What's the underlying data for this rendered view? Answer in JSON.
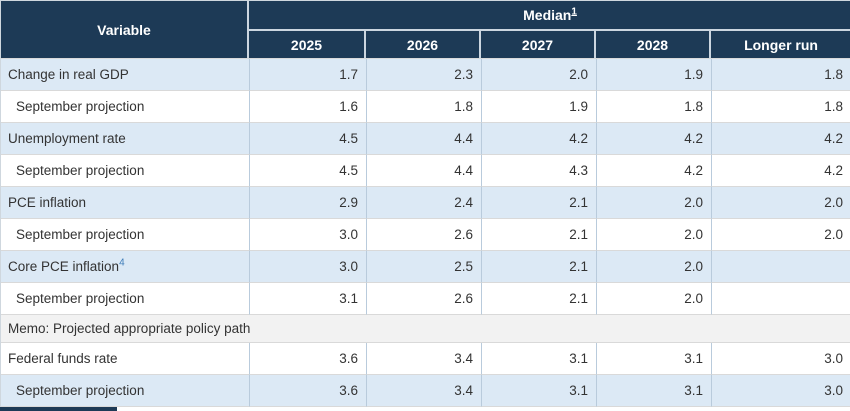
{
  "colors": {
    "header_bg": "#1d3a56",
    "header_border": "#ccd6e0",
    "band_blue": "#dce9f5",
    "memo_bg": "#f2f2f2",
    "row_border": "#d9d9d9",
    "col_border": "#b9cbdc",
    "link_blue": "#3e7cb8",
    "text": "#333333"
  },
  "table": {
    "header": {
      "variable_label": "Variable",
      "median_label": "Median",
      "median_footnote": "1",
      "years": [
        "2025",
        "2026",
        "2027",
        "2028",
        "Longer run"
      ]
    },
    "rows": [
      {
        "label": "Change in real GDP",
        "indent": false,
        "band": "blue",
        "footnote": "",
        "values": [
          "1.7",
          "2.3",
          "2.0",
          "1.9",
          "1.8"
        ]
      },
      {
        "label": "September projection",
        "indent": true,
        "band": "white",
        "footnote": "",
        "values": [
          "1.6",
          "1.8",
          "1.9",
          "1.8",
          "1.8"
        ]
      },
      {
        "label": "Unemployment rate",
        "indent": false,
        "band": "blue",
        "footnote": "",
        "values": [
          "4.5",
          "4.4",
          "4.2",
          "4.2",
          "4.2"
        ]
      },
      {
        "label": "September projection",
        "indent": true,
        "band": "white",
        "footnote": "",
        "values": [
          "4.5",
          "4.4",
          "4.3",
          "4.2",
          "4.2"
        ]
      },
      {
        "label": "PCE inflation",
        "indent": false,
        "band": "blue",
        "footnote": "",
        "values": [
          "2.9",
          "2.4",
          "2.1",
          "2.0",
          "2.0"
        ]
      },
      {
        "label": "September projection",
        "indent": true,
        "band": "white",
        "footnote": "",
        "values": [
          "3.0",
          "2.6",
          "2.1",
          "2.0",
          "2.0"
        ]
      },
      {
        "label": "Core PCE inflation",
        "indent": false,
        "band": "blue",
        "footnote": "4",
        "values": [
          "3.0",
          "2.5",
          "2.1",
          "2.0",
          ""
        ]
      },
      {
        "label": "September projection",
        "indent": true,
        "band": "white",
        "footnote": "",
        "values": [
          "3.1",
          "2.6",
          "2.1",
          "2.0",
          ""
        ]
      },
      {
        "type": "memo",
        "label": "Memo: Projected appropriate policy path"
      },
      {
        "label": "Federal funds rate",
        "indent": false,
        "band": "white",
        "footnote": "",
        "values": [
          "3.6",
          "3.4",
          "3.1",
          "3.1",
          "3.0"
        ]
      },
      {
        "label": "September projection",
        "indent": true,
        "band": "blue",
        "footnote": "",
        "values": [
          "3.6",
          "3.4",
          "3.1",
          "3.1",
          "3.0"
        ]
      }
    ]
  }
}
